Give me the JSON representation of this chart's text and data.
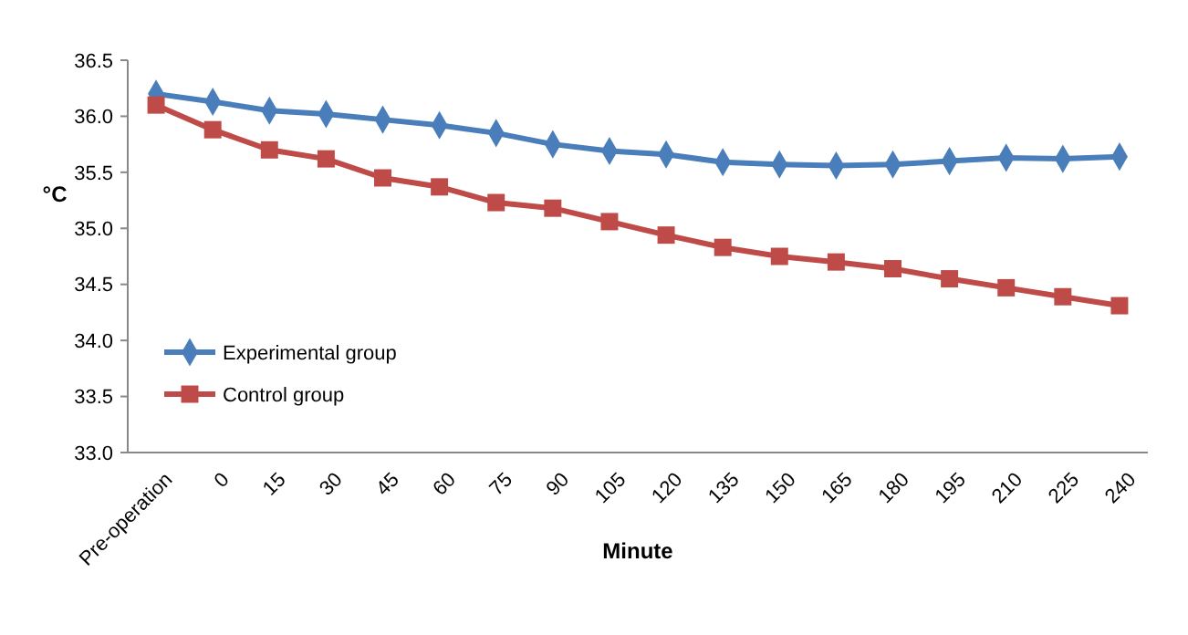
{
  "chart_data": {
    "type": "line",
    "xlabel": "Minute",
    "ylabel": "°C",
    "categories": [
      "Pre-operation",
      "0",
      "15",
      "30",
      "45",
      "60",
      "75",
      "90",
      "105",
      "120",
      "135",
      "150",
      "165",
      "180",
      "195",
      "210",
      "225",
      "240"
    ],
    "ylim": [
      33.0,
      36.5
    ],
    "yticks": [
      {
        "value": 33,
        "label": "33.0"
      },
      {
        "value": 33.5,
        "label": "33.5"
      },
      {
        "value": 34,
        "label": "34.0"
      },
      {
        "value": 34.5,
        "label": "34.5"
      },
      {
        "value": 35,
        "label": "35.0"
      },
      {
        "value": 35.5,
        "label": "35.5"
      },
      {
        "value": 36,
        "label": "36.0"
      },
      {
        "value": 36.5,
        "label": "36.5"
      }
    ],
    "legend": "bottom left",
    "grid": false,
    "series": [
      {
        "name": "Experimental group",
        "color": "#4a7ebb",
        "marker": "diamond",
        "values": [
          36.2,
          36.13,
          36.05,
          36.02,
          35.97,
          35.92,
          35.85,
          35.75,
          35.69,
          35.66,
          35.59,
          35.57,
          35.56,
          35.57,
          35.6,
          35.63,
          35.62,
          35.64
        ]
      },
      {
        "name": "Control group",
        "color": "#be4b48",
        "marker": "square",
        "values": [
          36.1,
          35.88,
          35.7,
          35.62,
          35.45,
          35.37,
          35.23,
          35.18,
          35.06,
          34.94,
          34.83,
          34.75,
          34.7,
          34.64,
          34.55,
          34.47,
          34.39,
          34.31
        ]
      }
    ]
  }
}
